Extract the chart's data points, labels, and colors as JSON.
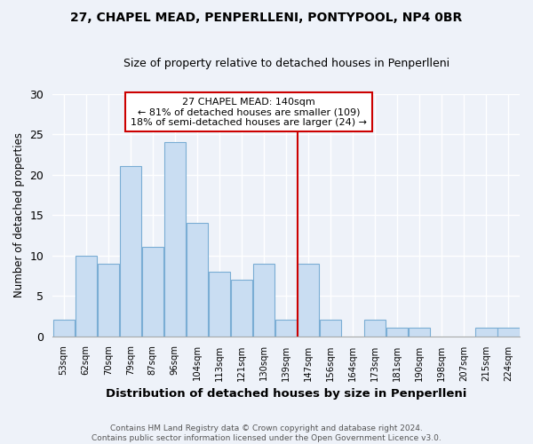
{
  "title1": "27, CHAPEL MEAD, PENPERLLENI, PONTYPOOL, NP4 0BR",
  "title2": "Size of property relative to detached houses in Penperlleni",
  "xlabel": "Distribution of detached houses by size in Penperlleni",
  "ylabel": "Number of detached properties",
  "categories": [
    "53sqm",
    "62sqm",
    "70sqm",
    "79sqm",
    "87sqm",
    "96sqm",
    "104sqm",
    "113sqm",
    "121sqm",
    "130sqm",
    "139sqm",
    "147sqm",
    "156sqm",
    "164sqm",
    "173sqm",
    "181sqm",
    "190sqm",
    "198sqm",
    "207sqm",
    "215sqm",
    "224sqm"
  ],
  "values": [
    2,
    10,
    9,
    21,
    11,
    24,
    14,
    8,
    7,
    9,
    2,
    9,
    2,
    0,
    2,
    1,
    1,
    0,
    0,
    1,
    1
  ],
  "bar_color": "#c9ddf2",
  "bar_edge_color": "#7aadd4",
  "background_color": "#eef2f9",
  "grid_color": "#ffffff",
  "annotation_line_color": "#cc0000",
  "annotation_box_text": "27 CHAPEL MEAD: 140sqm\n← 81% of detached houses are smaller (109)\n18% of semi-detached houses are larger (24) →",
  "annotation_box_edge_color": "#cc0000",
  "ylim": [
    0,
    30
  ],
  "yticks": [
    0,
    5,
    10,
    15,
    20,
    25,
    30
  ],
  "footer1": "Contains HM Land Registry data © Crown copyright and database right 2024.",
  "footer2": "Contains public sector information licensed under the Open Government Licence v3.0.",
  "red_line_idx": 10
}
